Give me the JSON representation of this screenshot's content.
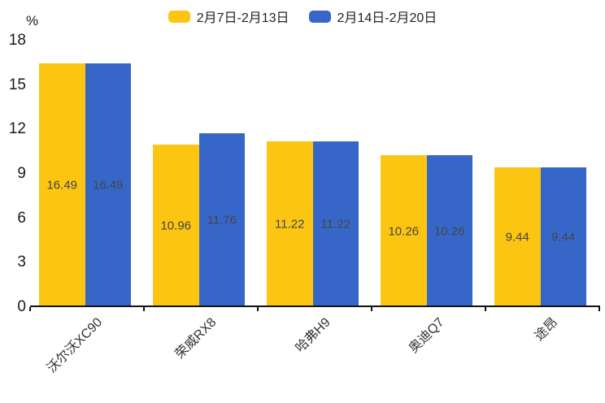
{
  "chart_data": {
    "type": "bar",
    "categories": [
      "沃尔沃XC90",
      "荣威RX8",
      "哈弗H9",
      "奥迪Q7",
      "途昂"
    ],
    "series": [
      {
        "name": "2月7日-2月13日",
        "color": "#FBC511",
        "values": [
          16.49,
          10.96,
          11.22,
          10.26,
          9.44
        ]
      },
      {
        "name": "2月14日-2月20日",
        "color": "#3667C8",
        "values": [
          16.49,
          11.76,
          11.22,
          10.26,
          9.44
        ]
      }
    ],
    "value_label_format": "2dp",
    "title": "",
    "xlabel": "",
    "ylabel": "",
    "y_unit": "%",
    "y_ticks": [
      0,
      3,
      6,
      9,
      12,
      15,
      18
    ],
    "ylim": [
      0,
      18
    ],
    "grid": false,
    "legend_position": "top",
    "colors": {
      "axis": "#111111",
      "tick_label": "#1a1a1a",
      "value_label": "#454545",
      "category_label": "#333333"
    }
  }
}
